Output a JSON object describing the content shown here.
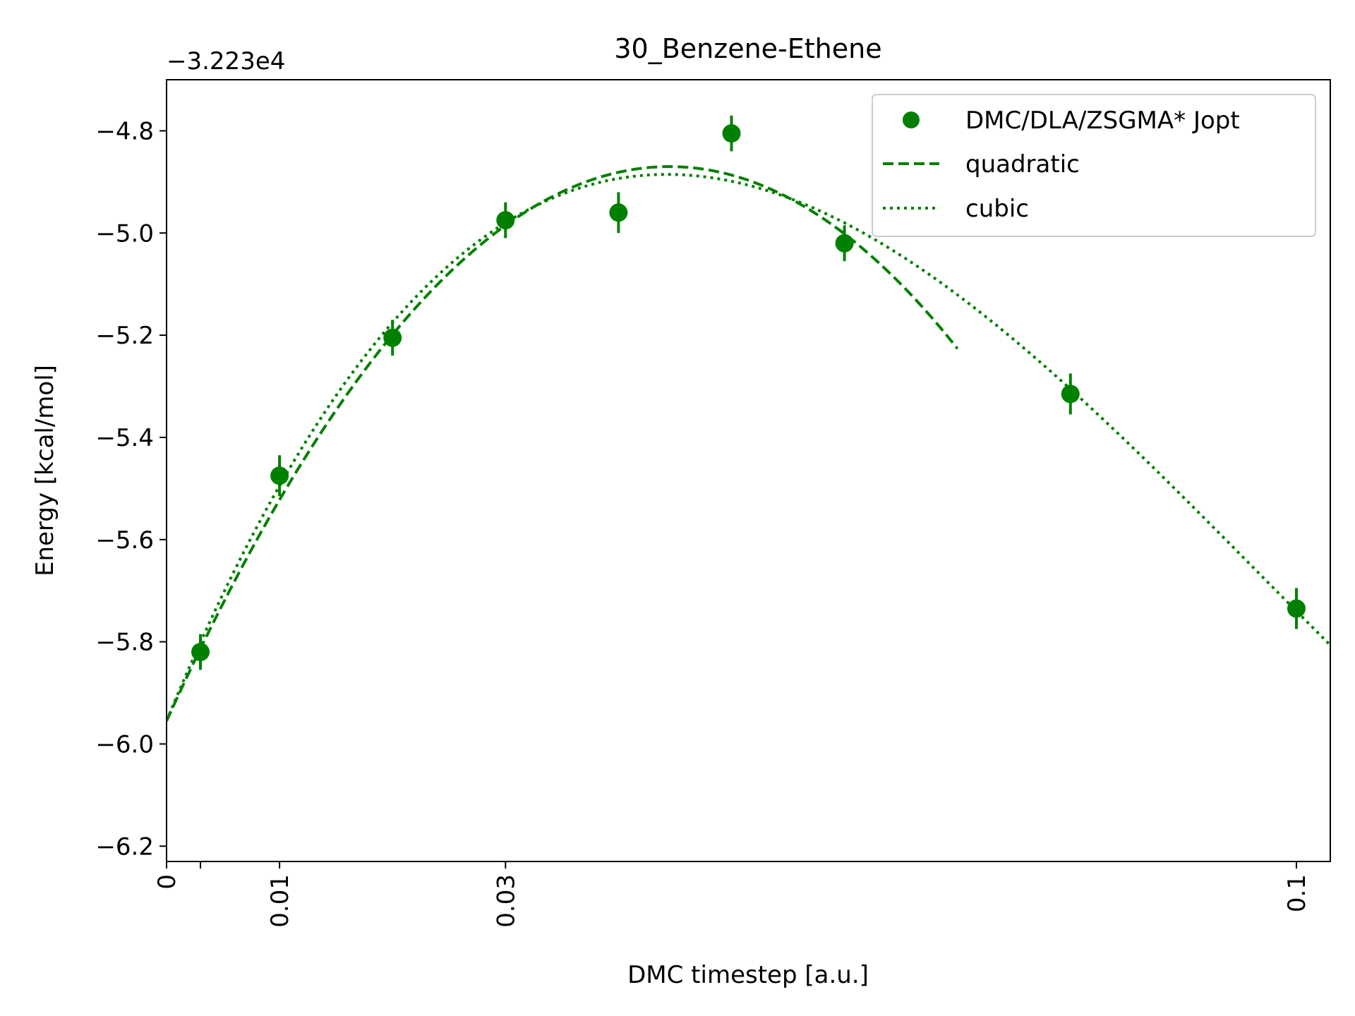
{
  "chart_data": {
    "type": "scatter",
    "title": "30_Benzene-Ethene",
    "xlabel": "DMC timestep [a.u.]",
    "ylabel": "Energy [kcal/mol]",
    "offset_text": "−3.223e4",
    "offset": -32230,
    "xlim": [
      0,
      0.103
    ],
    "ylim": [
      -6.23,
      -4.7
    ],
    "x_ticks": [
      0,
      0.003,
      0.01,
      0.03,
      0.1
    ],
    "x_tick_labels": [
      "0",
      "",
      "0.01",
      "0.03",
      "0.1"
    ],
    "y_ticks": [
      -6.2,
      -6.0,
      -5.8,
      -5.6,
      -5.4,
      -5.2,
      -5.0,
      -4.8
    ],
    "y_tick_labels": [
      "−6.2",
      "−6.0",
      "−5.8",
      "−5.6",
      "−5.4",
      "−5.2",
      "−5.0",
      "−4.8"
    ],
    "legend_position": "top-right",
    "grid": false,
    "color": "#008000",
    "series": [
      {
        "name": "DMC/DLA/ZSGMA* Jopt",
        "kind": "errorbar",
        "x": [
          0.003,
          0.01,
          0.02,
          0.03,
          0.04,
          0.05,
          0.06,
          0.08,
          0.1
        ],
        "y": [
          -5.82,
          -5.475,
          -5.205,
          -4.975,
          -4.96,
          -4.805,
          -5.02,
          -5.315,
          -5.735
        ],
        "yerr": [
          0.035,
          0.04,
          0.035,
          0.035,
          0.04,
          0.035,
          0.035,
          0.04,
          0.04
        ]
      },
      {
        "name": "quadratic",
        "kind": "line",
        "style": "dashed",
        "x_range": [
          0,
          0.07
        ],
        "x_vertex": 0.0445,
        "y_vertex": -4.87,
        "y_at_0": -5.955
      },
      {
        "name": "cubic",
        "kind": "line",
        "style": "dotted",
        "x_range": [
          0,
          0.103
        ],
        "points": [
          [
            0,
            -5.955
          ],
          [
            0.03,
            -4.98
          ],
          [
            0.06,
            -4.98
          ],
          [
            0.1,
            -5.74
          ]
        ]
      }
    ]
  }
}
